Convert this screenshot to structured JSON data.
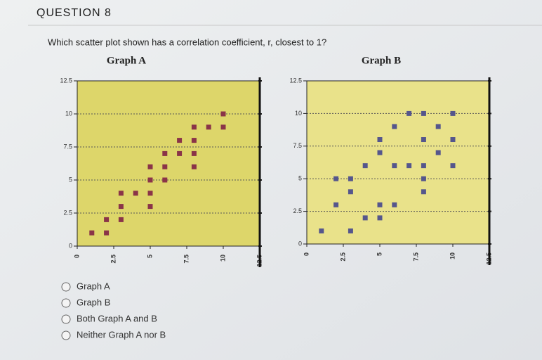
{
  "header": "QUESTION 8",
  "question": "Which scatter plot shown has a correlation coefficient, r, closest to 1?",
  "options": [
    "Graph A",
    "Graph B",
    "Both Graph A and B",
    "Neither Graph A nor B"
  ],
  "chart_data": [
    {
      "type": "scatter",
      "title": "Graph A",
      "color": "#8a3448",
      "background": "#ddd66a",
      "x": [
        1,
        2,
        2,
        3,
        3,
        3,
        4,
        5,
        5,
        5,
        5,
        6,
        6,
        6,
        7,
        8,
        8,
        7,
        8,
        8,
        9,
        10,
        10
      ],
      "values": [
        1,
        1,
        2,
        2,
        3,
        4,
        4,
        3,
        4,
        5,
        6,
        5,
        6,
        7,
        7,
        7,
        6,
        8,
        8,
        9,
        9,
        9,
        10
      ],
      "xlim": [
        0,
        12.5
      ],
      "ylim": [
        0,
        12.5
      ],
      "xticks": [
        0,
        2.5,
        5,
        7.5,
        10,
        12.5
      ],
      "yticks": [
        0,
        2.5,
        5,
        7.5,
        10,
        12.5
      ],
      "grid": true
    },
    {
      "type": "scatter",
      "title": "Graph B",
      "color": "#55568c",
      "background": "#e9e28a",
      "x": [
        1,
        2,
        2,
        3,
        3,
        3,
        4,
        4,
        5,
        5,
        5,
        5,
        6,
        6,
        6,
        7,
        7,
        8,
        8,
        8,
        8,
        8,
        9,
        9,
        10,
        10,
        10
      ],
      "values": [
        1,
        3,
        5,
        5,
        4,
        1,
        2,
        6,
        2,
        3,
        7,
        8,
        3,
        6,
        9,
        10,
        6,
        10,
        8,
        6,
        5,
        4,
        9,
        7,
        10,
        8,
        6
      ],
      "xlim": [
        0,
        12.5
      ],
      "ylim": [
        0,
        12.5
      ],
      "xticks": [
        0,
        2.5,
        5,
        7.5,
        10,
        12.5
      ],
      "yticks": [
        0,
        2.5,
        5,
        7.5,
        10,
        12.5
      ],
      "grid": true
    }
  ]
}
